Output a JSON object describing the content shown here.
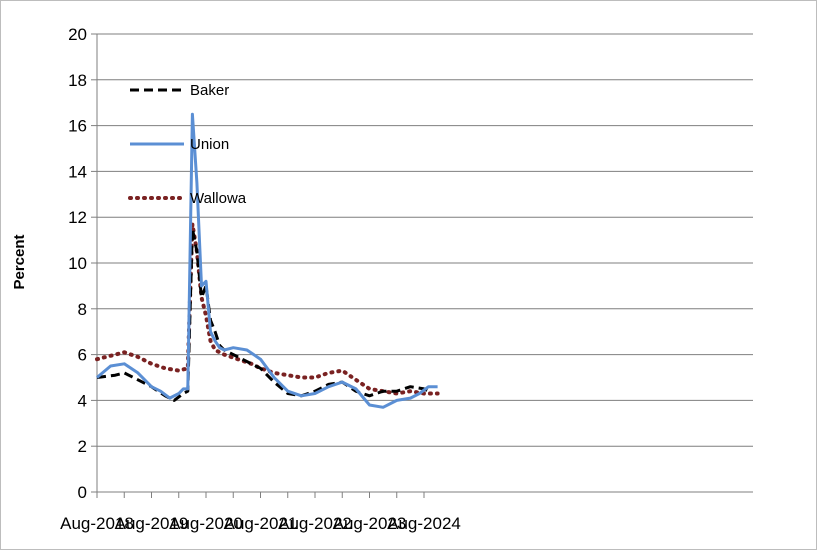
{
  "chart_data": {
    "type": "line",
    "ylabel": "Percent",
    "xlabel": "",
    "ylim": [
      0,
      20
    ],
    "yticks": [
      "0",
      "2",
      "4",
      "6",
      "8",
      "10",
      "12",
      "14",
      "16",
      "18",
      "20"
    ],
    "xlim": [
      "2018-08",
      "2024-08"
    ],
    "xtick_labels": [
      "Aug-2018",
      "Aug-2019",
      "Aug-2020",
      "Aug-2021",
      "Aug-2022",
      "Aug-2023",
      "Aug-2024"
    ],
    "grid": "horizontal",
    "legend_position": "top-left",
    "series": [
      {
        "name": "Baker",
        "color": "#000000",
        "style": "dashed",
        "points": [
          [
            "2018-08",
            5.0
          ],
          [
            "2018-12",
            5.1
          ],
          [
            "2019-02",
            5.2
          ],
          [
            "2019-05",
            4.9
          ],
          [
            "2019-08",
            4.6
          ],
          [
            "2019-11",
            4.2
          ],
          [
            "2020-01",
            4.0
          ],
          [
            "2020-03",
            4.3
          ],
          [
            "2020-04",
            4.4
          ],
          [
            "2020-05",
            11.5
          ],
          [
            "2020-06",
            10.5
          ],
          [
            "2020-07",
            8.5
          ],
          [
            "2020-08",
            9.0
          ],
          [
            "2020-09",
            7.5
          ],
          [
            "2020-10",
            7.0
          ],
          [
            "2020-11",
            6.4
          ],
          [
            "2020-12",
            6.2
          ],
          [
            "2021-03",
            5.9
          ],
          [
            "2021-06",
            5.6
          ],
          [
            "2021-08",
            5.4
          ],
          [
            "2021-11",
            4.8
          ],
          [
            "2022-02",
            4.3
          ],
          [
            "2022-05",
            4.2
          ],
          [
            "2022-08",
            4.4
          ],
          [
            "2022-11",
            4.7
          ],
          [
            "2023-02",
            4.8
          ],
          [
            "2023-05",
            4.4
          ],
          [
            "2023-08",
            4.2
          ],
          [
            "2023-11",
            4.4
          ],
          [
            "2024-02",
            4.4
          ],
          [
            "2024-05",
            4.6
          ],
          [
            "2024-08",
            4.5
          ],
          [
            "2024-09",
            4.4
          ]
        ]
      },
      {
        "name": "Union",
        "color": "#5b8fd4",
        "style": "solid",
        "points": [
          [
            "2018-08",
            5.0
          ],
          [
            "2018-11",
            5.5
          ],
          [
            "2019-02",
            5.6
          ],
          [
            "2019-05",
            5.2
          ],
          [
            "2019-08",
            4.6
          ],
          [
            "2019-10",
            4.4
          ],
          [
            "2019-12",
            4.1
          ],
          [
            "2020-02",
            4.3
          ],
          [
            "2020-03",
            4.5
          ],
          [
            "2020-04",
            4.5
          ],
          [
            "2020-05",
            16.5
          ],
          [
            "2020-06",
            13.5
          ],
          [
            "2020-07",
            9.0
          ],
          [
            "2020-08",
            9.2
          ],
          [
            "2020-09",
            7.0
          ],
          [
            "2020-10",
            6.6
          ],
          [
            "2020-11",
            6.3
          ],
          [
            "2020-12",
            6.2
          ],
          [
            "2021-02",
            6.3
          ],
          [
            "2021-05",
            6.2
          ],
          [
            "2021-08",
            5.8
          ],
          [
            "2021-11",
            5.0
          ],
          [
            "2022-02",
            4.4
          ],
          [
            "2022-05",
            4.2
          ],
          [
            "2022-08",
            4.3
          ],
          [
            "2022-11",
            4.6
          ],
          [
            "2023-02",
            4.8
          ],
          [
            "2023-05",
            4.5
          ],
          [
            "2023-08",
            3.8
          ],
          [
            "2023-11",
            3.7
          ],
          [
            "2024-02",
            4.0
          ],
          [
            "2024-05",
            4.1
          ],
          [
            "2024-07",
            4.3
          ],
          [
            "2024-09",
            4.6
          ],
          [
            "2024-11",
            4.6
          ]
        ]
      },
      {
        "name": "Wallowa",
        "color": "#7a2222",
        "style": "dotted",
        "points": [
          [
            "2018-08",
            5.8
          ],
          [
            "2018-12",
            6.0
          ],
          [
            "2019-02",
            6.1
          ],
          [
            "2019-05",
            5.9
          ],
          [
            "2019-08",
            5.6
          ],
          [
            "2019-11",
            5.4
          ],
          [
            "2020-02",
            5.3
          ],
          [
            "2020-04",
            5.4
          ],
          [
            "2020-05",
            11.7
          ],
          [
            "2020-06",
            10.5
          ],
          [
            "2020-07",
            8.5
          ],
          [
            "2020-08",
            7.7
          ],
          [
            "2020-09",
            6.6
          ],
          [
            "2020-10",
            6.2
          ],
          [
            "2020-12",
            6.0
          ],
          [
            "2021-03",
            5.8
          ],
          [
            "2021-06",
            5.6
          ],
          [
            "2021-08",
            5.4
          ],
          [
            "2021-11",
            5.2
          ],
          [
            "2022-02",
            5.1
          ],
          [
            "2022-05",
            5.0
          ],
          [
            "2022-08",
            5.0
          ],
          [
            "2022-11",
            5.2
          ],
          [
            "2023-02",
            5.3
          ],
          [
            "2023-05",
            4.9
          ],
          [
            "2023-08",
            4.5
          ],
          [
            "2023-11",
            4.4
          ],
          [
            "2024-02",
            4.3
          ],
          [
            "2024-05",
            4.4
          ],
          [
            "2024-08",
            4.3
          ],
          [
            "2024-11",
            4.3
          ]
        ]
      }
    ]
  }
}
